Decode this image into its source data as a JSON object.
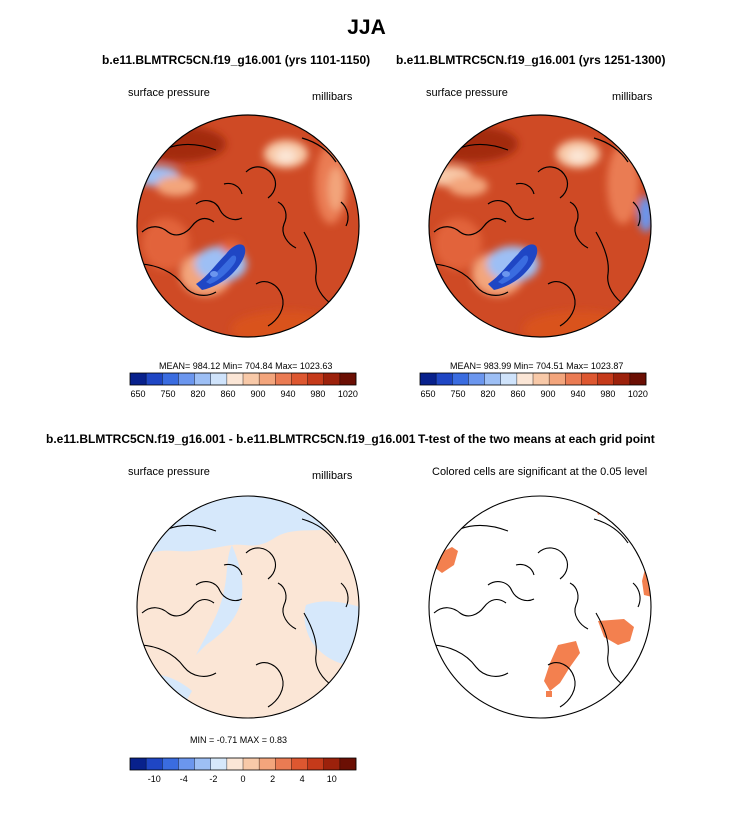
{
  "figure": {
    "title": "JJA"
  },
  "panels": [
    {
      "title": "b.e11.BLMTRC5CN.f19_g16.001 (yrs 1101-1150)",
      "left_label": "surface pressure",
      "right_label": "millibars",
      "stats": "MEAN= 984.12  Min= 704.84  Max= 1023.63",
      "mean": 984.12,
      "min": 704.84,
      "max": 1023.63
    },
    {
      "title": "b.e11.BLMTRC5CN.f19_g16.001 (yrs 1251-1300)",
      "left_label": "surface pressure",
      "right_label": "millibars",
      "stats": "MEAN= 983.99  Min= 704.51  Max= 1023.87",
      "mean": 983.99,
      "min": 704.51,
      "max": 1023.87
    },
    {
      "title": "b.e11.BLMTRC5CN.f19_g16.001 - b.e11.BLMTRC5CN.f19_g16.001",
      "left_label": "surface pressure",
      "right_label": "millibars",
      "stats": "MIN =  -0.71  MAX =   0.83",
      "min": -0.71,
      "max": 0.83
    },
    {
      "title": "T-test of the two means at each grid point",
      "subtitle": "Colored cells are significant at the 0.05 level"
    }
  ],
  "colorbars": {
    "abs": {
      "colors": [
        "#08218c",
        "#1f46c4",
        "#3a6ce0",
        "#6b96ee",
        "#9dbff5",
        "#cfe3fb",
        "#fbe6d6",
        "#f8c9a8",
        "#f3a57c",
        "#ea7b53",
        "#dd5730",
        "#c53a1a",
        "#9c210b",
        "#6b0f04"
      ],
      "labels": [
        "650",
        "750",
        "820",
        "860",
        "900",
        "940",
        "980",
        "1020"
      ]
    },
    "diff": {
      "colors": [
        "#08218c",
        "#1f46c4",
        "#3a6ce0",
        "#6b96ee",
        "#9dbff5",
        "#d6e8fb",
        "#fbe6d6",
        "#f8c9a8",
        "#f3a57c",
        "#ea7b53",
        "#dd5730",
        "#c53a1a",
        "#9c210b",
        "#6b0f04"
      ],
      "labels": [
        "-10",
        "-4",
        "-2",
        "0",
        "2",
        "4",
        "10"
      ]
    }
  },
  "chart_data": [
    {
      "type": "heatmap",
      "title": "b.e11.BLMTRC5CN.f19_g16.001 (yrs 1101-1150)",
      "variable": "surface pressure",
      "units": "millibars",
      "projection": "polar stereographic (north)",
      "stats": {
        "mean": 984.12,
        "min": 704.84,
        "max": 1023.63
      },
      "levels": [
        650,
        750,
        820,
        860,
        900,
        940,
        980,
        1020
      ]
    },
    {
      "type": "heatmap",
      "title": "b.e11.BLMTRC5CN.f19_g16.001 (yrs 1251-1300)",
      "variable": "surface pressure",
      "units": "millibars",
      "projection": "polar stereographic (north)",
      "stats": {
        "mean": 983.99,
        "min": 704.51,
        "max": 1023.87
      },
      "levels": [
        650,
        750,
        820,
        860,
        900,
        940,
        980,
        1020
      ]
    },
    {
      "type": "heatmap",
      "title": "b.e11.BLMTRC5CN.f19_g16.001 - b.e11.BLMTRC5CN.f19_g16.001",
      "variable": "surface pressure",
      "units": "millibars",
      "projection": "polar stereographic (north)",
      "stats": {
        "min": -0.71,
        "max": 0.83
      },
      "levels": [
        -10,
        -4,
        -2,
        0,
        2,
        4,
        10
      ]
    },
    {
      "type": "heatmap",
      "title": "T-test of the two means at each grid point",
      "subtitle": "Colored cells are significant at the 0.05 level",
      "projection": "polar stereographic (north)",
      "significance_level": 0.05
    }
  ]
}
